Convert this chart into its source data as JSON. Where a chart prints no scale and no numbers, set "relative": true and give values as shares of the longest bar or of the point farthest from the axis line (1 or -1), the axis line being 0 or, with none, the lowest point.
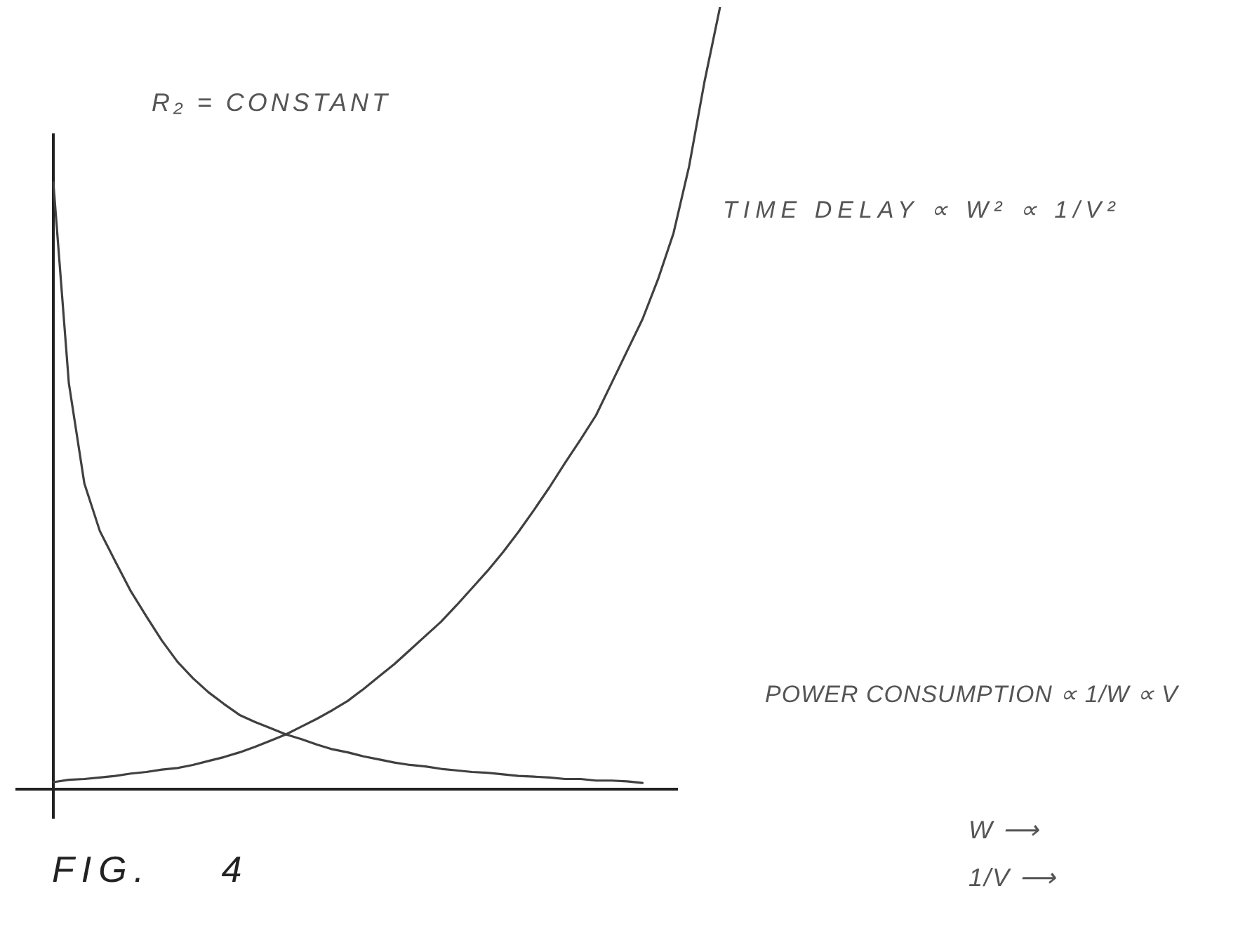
{
  "chart_data": {
    "type": "line",
    "annotations": [
      "R₂ = CONSTANT",
      "FIG. 4",
      "W ⟶",
      "1/V ⟶"
    ],
    "categories": [
      null,
      null,
      null,
      null,
      null,
      null,
      null,
      null,
      null,
      null,
      null,
      null,
      null,
      null,
      null,
      null,
      null,
      null,
      null,
      null,
      null,
      null,
      null,
      null,
      null,
      null,
      null,
      null,
      null,
      null,
      null,
      null,
      null,
      null,
      null,
      null,
      null,
      null,
      null,
      null,
      null,
      null,
      null,
      null
    ],
    "series": [
      {
        "name": "TIME DELAY ∝ W² ∝ 1/V²",
        "color": "#404040",
        "values": [
          0.009,
          0.012,
          0.013,
          0.015,
          0.017,
          0.02,
          0.022,
          0.025,
          0.027,
          0.031,
          0.036,
          0.041,
          0.047,
          0.054,
          0.062,
          0.07,
          0.08,
          0.09,
          0.101,
          0.113,
          0.128,
          0.144,
          0.16,
          0.178,
          0.196,
          0.214,
          0.235,
          0.257,
          0.279,
          0.303,
          0.329,
          0.357,
          0.386,
          0.417,
          0.447,
          0.478,
          0.519,
          0.56,
          0.601,
          0.652,
          0.711,
          0.796,
          0.905,
          1
        ]
      },
      {
        "name": "POWER CONSUMPTION ∝ 1/W ∝ V",
        "color": "#404040",
        "values": [
          0.776,
          0.519,
          0.391,
          0.33,
          0.291,
          0.253,
          0.221,
          0.19,
          0.163,
          0.142,
          0.124,
          0.109,
          0.095,
          0.086,
          0.078,
          0.07,
          0.064,
          0.057,
          0.051,
          0.047,
          0.042,
          0.038,
          0.034,
          0.031,
          0.029,
          0.026,
          0.024,
          0.022,
          0.021,
          0.019,
          0.017,
          0.016,
          0.015,
          0.013,
          0.013,
          0.011,
          0.011,
          0.01,
          0.008,
          null,
          null,
          null,
          null,
          null
        ]
      }
    ],
    "relative": true,
    "grid": false,
    "legend": false,
    "marker": "none"
  }
}
